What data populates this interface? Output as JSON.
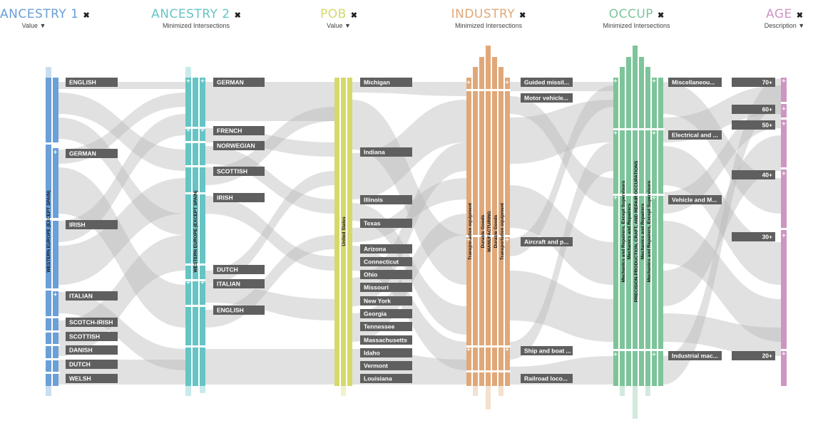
{
  "columns": [
    {
      "title": "ANCESTRY 1",
      "sort": "Value ▼",
      "color": "#6a9fd8"
    },
    {
      "title": "ANCESTRY 2",
      "sort": "Minimized Intersections",
      "color": "#66c4c4"
    },
    {
      "title": "POB",
      "sort": "Value ▼",
      "color": "#d6d96a"
    },
    {
      "title": "INDUSTRY",
      "sort": "Minimized Intersections",
      "color": "#e0a878"
    },
    {
      "title": "OCCUP",
      "sort": "Minimized Intersections",
      "color": "#7dc49a"
    },
    {
      "title": "AGE",
      "sort": "Description ▼",
      "color": "#cf95c2"
    }
  ],
  "close_icon": "✖",
  "expand_icon": "+",
  "ancestry1": {
    "group": "WESTERN EUROPE (EXCEPT SPAIN)",
    "labels": [
      "ENGLISH",
      "GERMAN",
      "IRISH",
      "ITALIAN",
      "SCOTCH-IRISH",
      "SCOTTISH",
      "DANISH",
      "DUTCH",
      "WELSH"
    ]
  },
  "ancestry2": {
    "group": "WESTERN EUROPE (EXCEPT SPAIN)",
    "labels": [
      "GERMAN",
      "FRENCH",
      "NORWEGIAN",
      "SCOTTISH",
      "IRISH",
      "DUTCH",
      "ITALIAN",
      "ENGLISH"
    ]
  },
  "pob": {
    "group": "United States",
    "labels": [
      "Michigan",
      "Indiana",
      "Illinois",
      "Texas",
      "Arizona",
      "Connecticut",
      "Ohio",
      "Missouri",
      "New York",
      "Georgia",
      "Tennessee",
      "Massachusetts",
      "Idaho",
      "Vermont",
      "Louisiana"
    ]
  },
  "industry": {
    "levels": [
      "Transportation equipment",
      "Durable Goods",
      "MANUFACTURING",
      "Durable Goods",
      "Transportation equipment"
    ],
    "labels": [
      "Guided missil...",
      "Motor vehicle...",
      "Aircraft and p...",
      "Ship and boat ...",
      "Railroad loco..."
    ]
  },
  "occup": {
    "levels": [
      "Mechanics and Repairers, Except Supervisors",
      "Mechanics and Repairers",
      "PRECISION PRODUCTION, CRAFT, AND REPAIR OCCUPATIONS",
      "Mechanics and Repairers",
      "Mechanics and Repairers, Except Supervisors"
    ],
    "labels": [
      "Miscellaneou...",
      "Electrical and ...",
      "Vehicle and M...",
      "Industrial mac..."
    ]
  },
  "age": {
    "labels": [
      "70+",
      "60+",
      "50+",
      "40+",
      "30+",
      "20+"
    ]
  }
}
